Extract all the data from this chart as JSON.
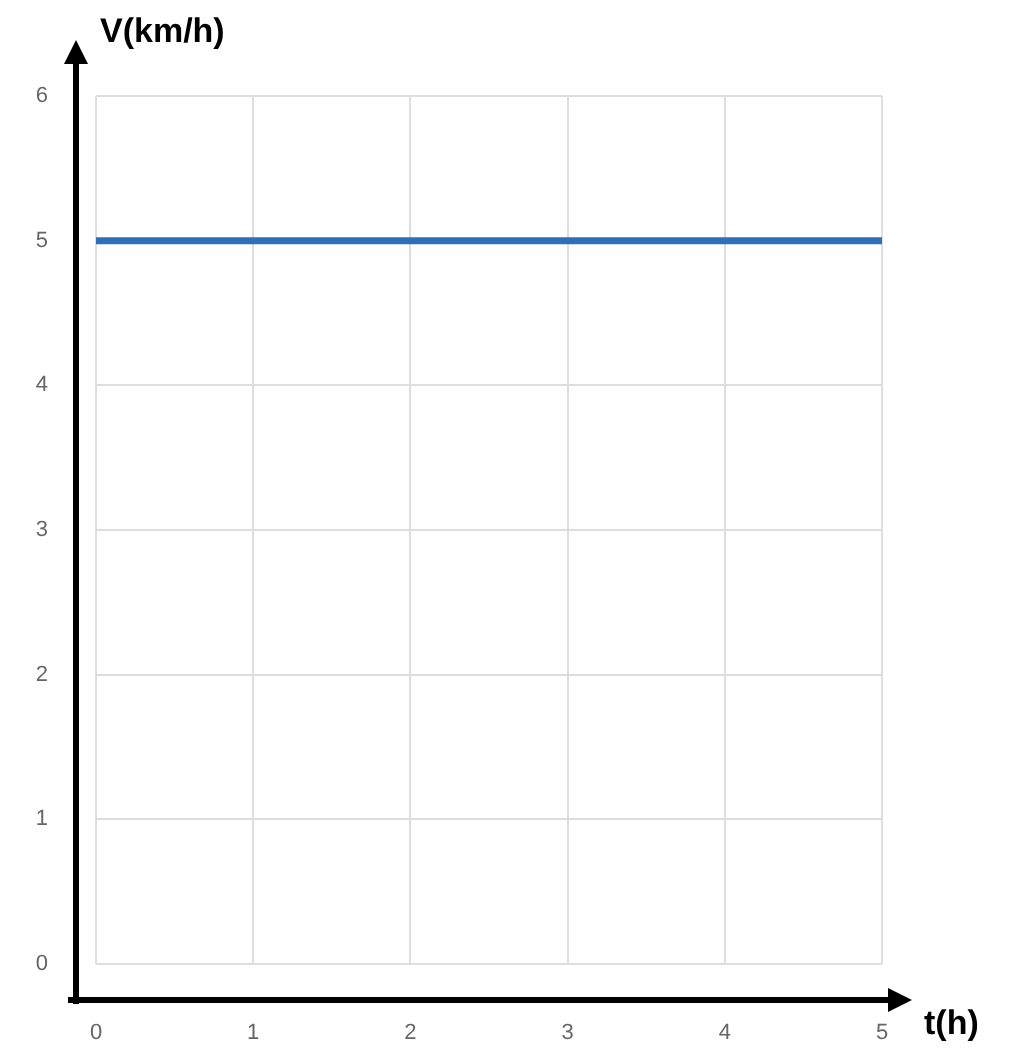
{
  "chart_data": {
    "type": "line",
    "xlabel": "t(h)",
    "ylabel": "V(km/h)",
    "x": [
      0,
      5
    ],
    "series": [
      {
        "color": "#2f6fb5",
        "values": [
          5,
          5
        ]
      }
    ],
    "xlim": [
      0,
      5
    ],
    "xticks": [
      0,
      1,
      2,
      3,
      4,
      5
    ],
    "ylim": [
      0,
      6
    ],
    "yticks": [
      0,
      1,
      2,
      3,
      4,
      5,
      6
    ],
    "grid": true,
    "legend": false,
    "marker": "none",
    "line_style": "solid"
  }
}
